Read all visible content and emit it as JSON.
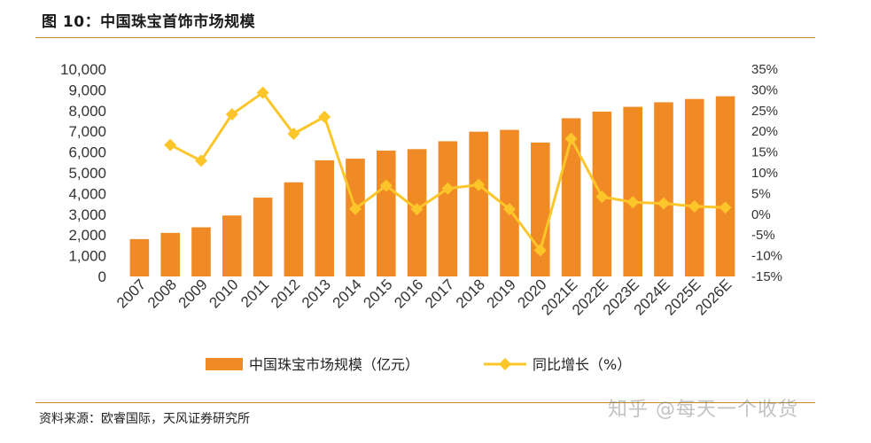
{
  "header": {
    "title": "图 10：中国珠宝首饰市场规模"
  },
  "footer": {
    "source": "资料来源：欧睿国际，天风证券研究所",
    "watermark": "知乎 @每天一个收货"
  },
  "chart_data": {
    "type": "bar+line",
    "categories": [
      "2007",
      "2008",
      "2009",
      "2010",
      "2011",
      "2012",
      "2013",
      "2014",
      "2015",
      "2016",
      "2017",
      "2018",
      "2019",
      "2020",
      "2021E",
      "2022E",
      "2023E",
      "2024E",
      "2025E",
      "2026E"
    ],
    "series": [
      {
        "name": "中国珠宝市场规模（亿元）",
        "type": "bar",
        "axis": "left",
        "color": "#f08a24",
        "values": [
          1800,
          2100,
          2370,
          2940,
          3800,
          4540,
          5600,
          5680,
          6070,
          6140,
          6520,
          6980,
          7070,
          6460,
          7630,
          7950,
          8180,
          8400,
          8560,
          8690
        ]
      },
      {
        "name": "同比增长（%）",
        "type": "line",
        "axis": "right",
        "color": "#fcc62b",
        "values": [
          null,
          16.7,
          12.9,
          24.1,
          29.3,
          19.4,
          23.5,
          1.3,
          6.9,
          1.2,
          6.2,
          7.1,
          1.2,
          -8.7,
          18.2,
          4.2,
          2.9,
          2.6,
          1.9,
          1.6
        ]
      }
    ],
    "yaxis_left": {
      "min": 0,
      "max": 10000,
      "ticks": [
        "0",
        "1,000",
        "2,000",
        "3,000",
        "4,000",
        "5,000",
        "6,000",
        "7,000",
        "8,000",
        "9,000",
        "10,000"
      ]
    },
    "yaxis_right": {
      "min": -15,
      "max": 35,
      "ticks": [
        "-15%",
        "-10%",
        "-5%",
        "0%",
        "5%",
        "10%",
        "15%",
        "20%",
        "25%",
        "30%",
        "35%"
      ]
    },
    "grid": false,
    "legend": "bottom"
  }
}
